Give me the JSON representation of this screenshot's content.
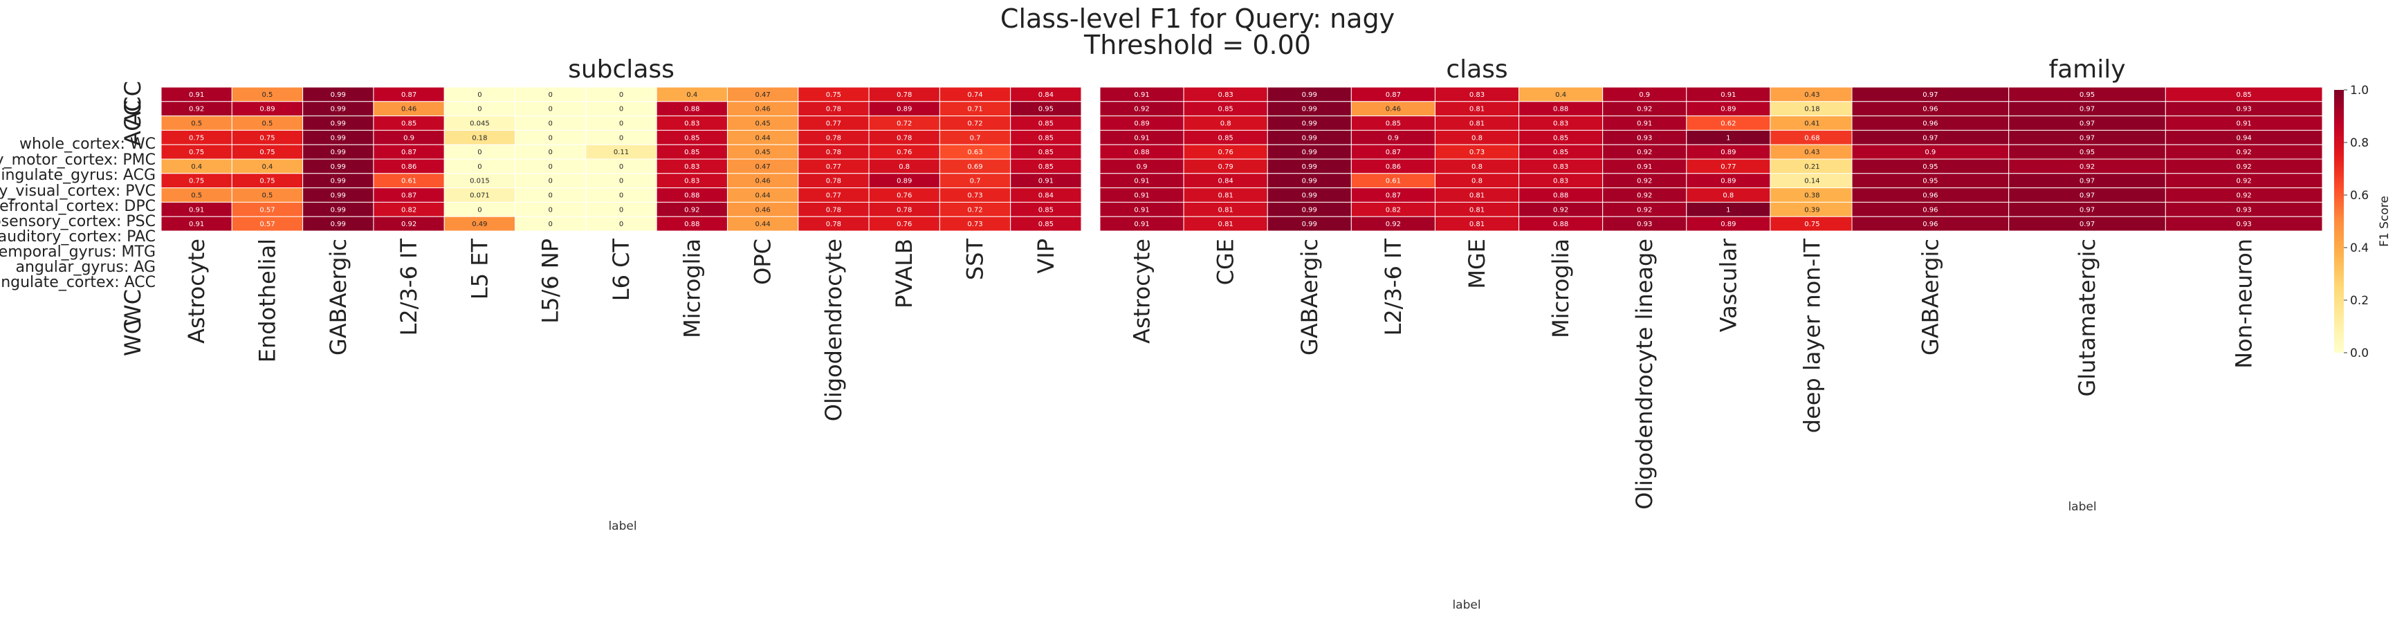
{
  "title": "Class-level F1 for Query: nagy",
  "subtitle": "Threshold = 0.00",
  "row_labels": [
    "ACC",
    "ACC",
    "whole_cortex: WC",
    "primary_motor_cortex: PMC",
    "anterior_cingulate_gyrus: ACG",
    "primary_visual_cortex: PVC",
    "dorsolateral_prefrontal_cortex: DPC",
    "primary_somatosensory_cortex: PSC",
    "primary_auditory_cortex: PAC",
    "middle_temporal_gyrus: MTG",
    "angular_gyrus: AG",
    "anterior_cingulate_cortex: ACC",
    "WC",
    "WC"
  ],
  "colorbar": {
    "label": "F1 Score",
    "ticks": [
      "0.0",
      "0.2",
      "0.4",
      "0.6",
      "0.8",
      "1.0"
    ],
    "colors": [
      "#ffffcc",
      "#ffeda0",
      "#fed976",
      "#feb24c",
      "#fd8d3c",
      "#fc4e2a",
      "#e31a1c",
      "#bd0026",
      "#800026"
    ]
  },
  "chart_data": [
    {
      "type": "heatmap",
      "title": "subclass",
      "xlabel": "label",
      "ylabel": "",
      "categories": [
        "Astrocyte",
        "Endothelial",
        "GABAergic",
        "L2/3-6 IT",
        "L5 ET",
        "L5/6 NP",
        "L6 CT",
        "Microglia",
        "OPC",
        "Oligodendrocyte",
        "PVALB",
        "SST",
        "VIP"
      ],
      "values": [
        [
          0.91,
          0.5,
          0.99,
          0.87,
          0,
          0,
          0,
          0.4,
          0.47,
          0.75,
          0.78,
          0.74,
          0.84
        ],
        [
          0.92,
          0.89,
          0.99,
          0.46,
          0,
          0,
          0,
          0.88,
          0.46,
          0.78,
          0.89,
          0.71,
          0.95
        ],
        [
          0.5,
          0.5,
          0.99,
          0.85,
          0.045,
          0,
          0,
          0.83,
          0.45,
          0.77,
          0.72,
          0.72,
          0.85
        ],
        [
          0.75,
          0.75,
          0.99,
          0.9,
          0.18,
          0,
          0,
          0.85,
          0.44,
          0.78,
          0.78,
          0.7,
          0.85
        ],
        [
          0.75,
          0.75,
          0.99,
          0.87,
          0,
          0,
          0.11,
          0.85,
          0.45,
          0.78,
          0.76,
          0.63,
          0.85
        ],
        [
          0.4,
          0.4,
          0.99,
          0.86,
          0,
          0,
          0,
          0.83,
          0.47,
          0.77,
          0.8,
          0.69,
          0.85
        ],
        [
          0.75,
          0.75,
          0.99,
          0.61,
          0.015,
          0,
          0,
          0.83,
          0.46,
          0.78,
          0.89,
          0.7,
          0.91
        ],
        [
          0.5,
          0.5,
          0.99,
          0.87,
          0.071,
          0,
          0,
          0.88,
          0.44,
          0.77,
          0.76,
          0.73,
          0.84
        ],
        [
          0.91,
          0.57,
          0.99,
          0.82,
          0,
          0,
          0,
          0.92,
          0.46,
          0.78,
          0.78,
          0.72,
          0.85
        ],
        [
          0.91,
          0.57,
          0.99,
          0.92,
          0.49,
          0,
          0,
          0.88,
          0.44,
          0.78,
          0.76,
          0.73,
          0.85
        ]
      ],
      "visible_rows": [
        [
          0,
          1
        ],
        [
          2,
          3,
          4,
          5,
          6,
          7,
          8,
          9,
          10,
          11
        ],
        [
          12,
          13
        ]
      ]
    },
    {
      "type": "heatmap",
      "title": "class",
      "xlabel": "label",
      "ylabel": "",
      "categories": [
        "Astrocyte",
        "CGE",
        "GABAergic",
        "L2/3-6 IT",
        "MGE",
        "Microglia",
        "Oligodendrocyte lineage",
        "Vascular",
        "deep layer non-IT"
      ],
      "values": [
        [
          0.91,
          0.83,
          0.99,
          0.87,
          0.83,
          0.4,
          0.9,
          0.91,
          0.43
        ],
        [
          0.92,
          0.85,
          0.99,
          0.46,
          0.81,
          0.88,
          0.92,
          0.89,
          0.18
        ],
        [
          0.89,
          0.8,
          0.99,
          0.85,
          0.81,
          0.83,
          0.91,
          0.62,
          0.41
        ],
        [
          0.91,
          0.85,
          0.99,
          0.9,
          0.8,
          0.85,
          0.93,
          1,
          0.68
        ],
        [
          0.88,
          0.76,
          0.99,
          0.87,
          0.73,
          0.85,
          0.92,
          0.89,
          0.43
        ],
        [
          0.9,
          0.79,
          0.99,
          0.86,
          0.8,
          0.83,
          0.91,
          0.77,
          0.21
        ],
        [
          0.91,
          0.84,
          0.99,
          0.61,
          0.8,
          0.83,
          0.92,
          0.89,
          0.14
        ],
        [
          0.91,
          0.81,
          0.99,
          0.87,
          0.81,
          0.88,
          0.92,
          0.8,
          0.38
        ],
        [
          0.91,
          0.81,
          0.99,
          0.82,
          0.81,
          0.92,
          0.92,
          1,
          0.39
        ],
        [
          0.91,
          0.81,
          0.99,
          0.92,
          0.81,
          0.88,
          0.93,
          0.89,
          0.75
        ]
      ]
    },
    {
      "type": "heatmap",
      "title": "family",
      "xlabel": "label",
      "ylabel": "",
      "categories": [
        "GABAergic",
        "Glutamatergic",
        "Non-neuron"
      ],
      "values": [
        [
          0.97,
          0.95,
          0.85
        ],
        [
          0.96,
          0.97,
          0.93
        ],
        [
          0.96,
          0.97,
          0.91
        ],
        [
          0.97,
          0.97,
          0.94
        ],
        [
          0.9,
          0.95,
          0.92
        ],
        [
          0.95,
          0.92,
          0.92
        ],
        [
          0.95,
          0.97,
          0.92
        ],
        [
          0.96,
          0.97,
          0.92
        ],
        [
          0.96,
          0.97,
          0.93
        ],
        [
          0.96,
          0.97,
          0.93
        ]
      ]
    }
  ]
}
